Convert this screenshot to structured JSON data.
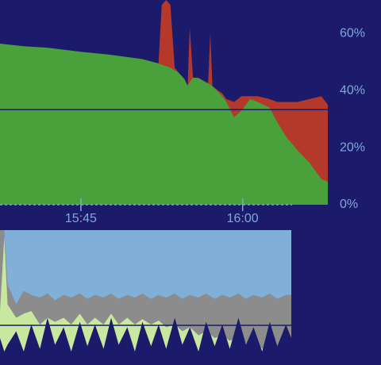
{
  "chart_data": [
    {
      "type": "area",
      "x": [
        937.5,
        939.7,
        941.9,
        944.9,
        947.8,
        950.7,
        952.2,
        952.5,
        952.9,
        953.3,
        953.7,
        954.0,
        954.6,
        954.9,
        955.1,
        955.4,
        955.9,
        956.8,
        957.0,
        957.2,
        958.1,
        958.5,
        959.2,
        959.9,
        960.7,
        961.4,
        962.5,
        963.2,
        964.0,
        965.1,
        966.2,
        967.3,
        967.9
      ],
      "series": [
        {
          "color": "#b5392a",
          "values": [
            null,
            null,
            null,
            null,
            null,
            null,
            49.5,
            70,
            71.7,
            70,
            48,
            46.5,
            44,
            41.7,
            62,
            44.5,
            44.4,
            42.5,
            60,
            41.5,
            39,
            37,
            36,
            38,
            38,
            38,
            37,
            36,
            36,
            36,
            37,
            38,
            35
          ]
        },
        {
          "color": "#4aa03a",
          "values": [
            56.4,
            55.5,
            55,
            53.6,
            52.5,
            51,
            49.5,
            49,
            48.5,
            48,
            47,
            46.5,
            44,
            41.7,
            43,
            44.5,
            44.4,
            42.5,
            42,
            41.5,
            38,
            36,
            30.6,
            33,
            37,
            36,
            34,
            29,
            24,
            19,
            14.7,
            9,
            8
          ]
        }
      ],
      "reference_line": 33.3,
      "xlim": [
        937.5,
        967.9
      ],
      "xticks": [
        {
          "value": 945,
          "label": "15:45"
        },
        {
          "value": 960,
          "label": "16:00"
        }
      ],
      "ylim": [
        0,
        71.7
      ],
      "yticks": [
        {
          "value": 0,
          "label": "0%"
        },
        {
          "value": 20,
          "label": "20%"
        },
        {
          "value": 40,
          "label": "40%"
        },
        {
          "value": 60,
          "label": "60%"
        }
      ]
    },
    {
      "type": "area",
      "x": [
        937.5,
        937.9,
        938.2,
        939.0,
        939.7,
        940.4,
        941.2,
        941.9,
        942.6,
        943.4,
        944.1,
        944.9,
        945.6,
        946.3,
        947.1,
        947.8,
        948.5,
        949.3,
        950.0,
        950.7,
        951.5,
        952.2,
        952.9,
        953.7,
        954.4,
        955.1,
        955.9,
        956.6,
        957.4,
        958.1,
        958.8,
        959.6,
        960.3,
        961.0,
        961.8,
        962.5,
        963.2,
        964.0,
        964.5
      ],
      "series": [
        {
          "color": "#8c8c8c",
          "values": [
            100,
            100,
            60,
            45,
            55,
            52,
            50,
            53,
            48,
            52,
            50,
            53,
            49,
            52,
            50,
            53,
            49,
            52,
            50,
            53,
            49,
            52,
            50,
            53,
            49,
            52,
            50,
            53,
            49,
            52,
            50,
            53,
            49,
            52,
            50,
            53,
            49,
            52,
            52
          ]
        },
        {
          "color": "#c8e8a0",
          "values": [
            40,
            95,
            45,
            35,
            38,
            40,
            30,
            35,
            32,
            35,
            30,
            38,
            30,
            35,
            30,
            38,
            30,
            35,
            30,
            34,
            30,
            33,
            28,
            30,
            25,
            28,
            22,
            25,
            20,
            22,
            18,
            20,
            15,
            18,
            12,
            15,
            10,
            12,
            10
          ]
        },
        {
          "color": "#1c1b6b",
          "values": [
            20,
            10,
            15,
            25,
            10,
            30,
            12,
            35,
            15,
            28,
            10,
            32,
            14,
            30,
            12,
            35,
            15,
            28,
            10,
            32,
            14,
            30,
            12,
            35,
            15,
            28,
            10,
            32,
            14,
            30,
            12,
            35,
            15,
            28,
            10,
            32,
            14,
            30,
            20
          ]
        }
      ],
      "reference_line": 29.4,
      "background": "#80b0d8",
      "xlim": [
        937.5,
        964.5
      ],
      "ylim": [
        0,
        100
      ]
    }
  ]
}
